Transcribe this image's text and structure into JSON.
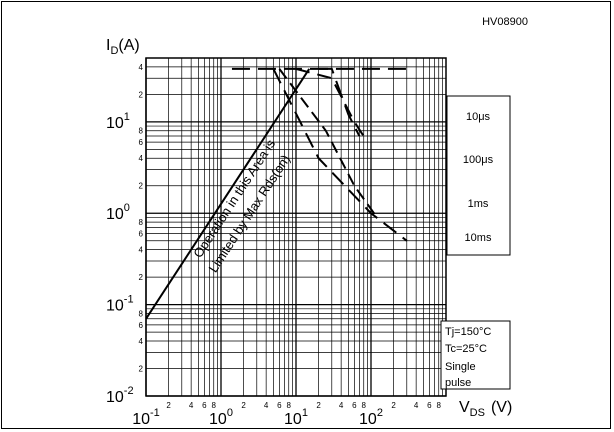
{
  "chart_data": {
    "type": "line",
    "code": "HV08900",
    "x_scale": "log",
    "y_scale": "log",
    "xlim": [
      0.1,
      1000
    ],
    "ylim": [
      0.01,
      50
    ],
    "x_major_ticks": [
      {
        "value": 0.1,
        "base": "10",
        "exp": "-1"
      },
      {
        "value": 1,
        "base": "10",
        "exp": "0"
      },
      {
        "value": 10,
        "base": "10",
        "exp": "1"
      },
      {
        "value": 100,
        "base": "10",
        "exp": "2"
      }
    ],
    "y_major_ticks": [
      {
        "value": 0.01,
        "base": "10",
        "exp": "-2"
      },
      {
        "value": 0.1,
        "base": "10",
        "exp": "-1"
      },
      {
        "value": 1,
        "base": "10",
        "exp": "0"
      },
      {
        "value": 10,
        "base": "10",
        "exp": "1"
      }
    ],
    "minor_tick_labels": [
      "2",
      "4",
      "6",
      "8"
    ],
    "x_minor_label_values": [
      2,
      4,
      6,
      8
    ],
    "y_minor_label_values": [
      2,
      4,
      6,
      8
    ],
    "xlabel": {
      "main": "V",
      "sub": "DS",
      "unit": "(V)"
    },
    "ylabel": {
      "main": "I",
      "sub": "D",
      "unit": "(A)"
    },
    "limit_annotation": {
      "line1": "Operation in this Area is",
      "line2": "Limited by Max Rds(on)"
    },
    "rds_on_line": {
      "x": [
        0.1,
        15
      ],
      "y": [
        0.07,
        38
      ]
    },
    "id_max": 38,
    "series": [
      {
        "name": "10μs",
        "x": [
          20,
          30,
          50,
          70
        ],
        "y": [
          38,
          38,
          12,
          7
        ]
      },
      {
        "name": "100μs",
        "x": [
          10,
          30,
          60,
          90
        ],
        "y": [
          38,
          30,
          10,
          6
        ]
      },
      {
        "name": "1ms",
        "x": [
          6,
          25,
          60,
          120
        ],
        "y": [
          38,
          8,
          2,
          0.9
        ]
      },
      {
        "name": "10ms",
        "x": [
          5,
          20,
          100,
          300
        ],
        "y": [
          38,
          4,
          1,
          0.5
        ]
      }
    ],
    "legend": {
      "items": [
        "10μs",
        "100μs",
        "1ms",
        "10ms"
      ],
      "conditions": [
        "Tj=150°C",
        "Tc=25°C",
        "Single",
        "pulse"
      ]
    },
    "colors": {
      "grid": "#000000",
      "background": "#ffffff"
    }
  }
}
